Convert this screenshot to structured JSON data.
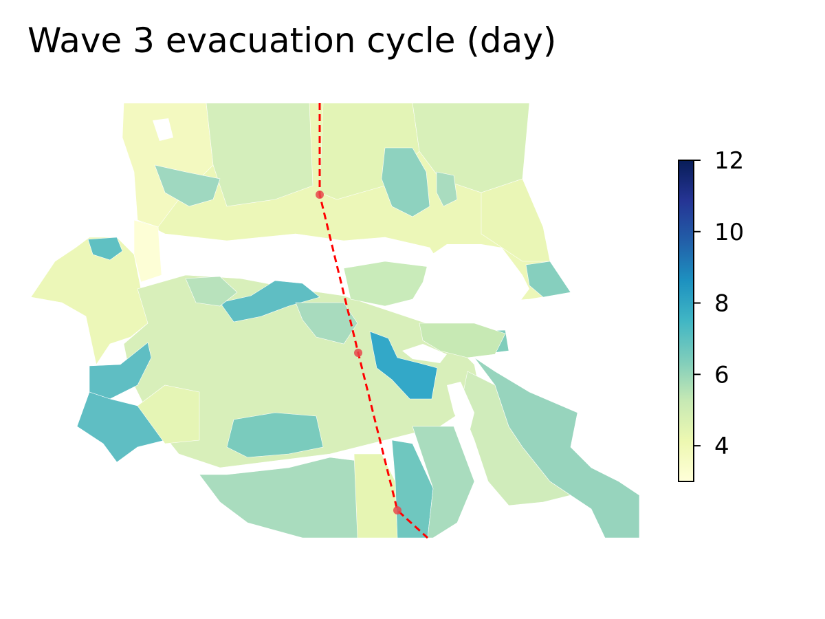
{
  "title": "Wave 3 evacuation cycle (day)",
  "colorbar": {
    "min": 3,
    "max": 12,
    "ticks": [
      4,
      6,
      8,
      10,
      12
    ],
    "colormap": [
      "#ffffd9",
      "#edf8b1",
      "#c7e9b4",
      "#7fcdbb",
      "#41b6c4",
      "#1d91c0",
      "#225ea8",
      "#253494",
      "#081d58"
    ]
  },
  "hurricane_track": {
    "line_color": "#ff0000",
    "marker_color": "#e8464a",
    "style": "dashed"
  },
  "water_color": "#ffffff"
}
